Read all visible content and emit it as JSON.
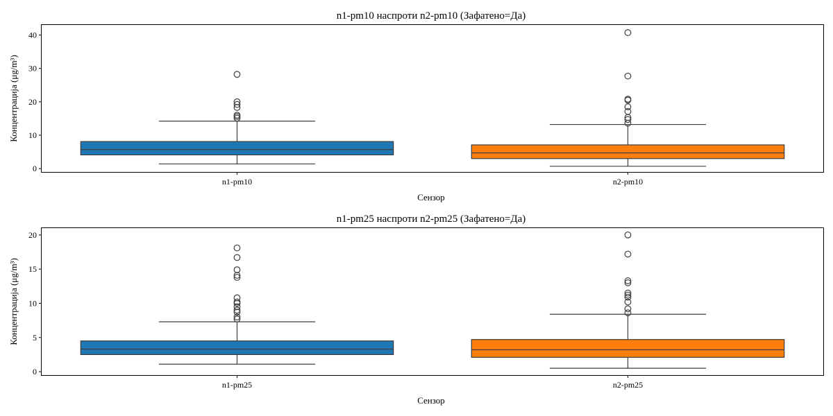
{
  "colors": {
    "n1": "#1f77b4",
    "n2": "#ff7f0e"
  },
  "chart_data": [
    {
      "type": "box",
      "title": "n1-pm10 наспроти n2-pm10 (Зафатено=Да)",
      "xlabel": "Сензор",
      "ylabel": "Концентрација (μg/m³)",
      "ylim": [
        -1,
        43
      ],
      "yticks": [
        0,
        10,
        20,
        30,
        40
      ],
      "categories": [
        "n1-pm10",
        "n2-pm10"
      ],
      "boxes": [
        {
          "q1": 4.1,
          "median": 5.7,
          "q3": 8.1,
          "whisker_low": 1.4,
          "whisker_high": 14.2,
          "outliers": [
            15.1,
            15.6,
            16.0,
            18.3,
            19.2,
            20.0,
            28.2
          ]
        },
        {
          "q1": 3.0,
          "median": 4.7,
          "q3": 7.1,
          "whisker_low": 0.7,
          "whisker_high": 13.2,
          "outliers": [
            13.6,
            14.7,
            15.3,
            17.1,
            18.5,
            20.5,
            20.8,
            27.7,
            40.7
          ]
        }
      ]
    },
    {
      "type": "box",
      "title": "n1-pm25 наспроти n2-pm25 (Зафатено=Да)",
      "xlabel": "Сензор",
      "ylabel": "Концентрација (μg/m³)",
      "ylim": [
        -0.5,
        21
      ],
      "yticks": [
        0,
        5,
        10,
        15,
        20
      ],
      "categories": [
        "n1-pm25",
        "n2-pm25"
      ],
      "boxes": [
        {
          "q1": 2.5,
          "median": 3.3,
          "q3": 4.5,
          "whisker_low": 1.1,
          "whisker_high": 7.3,
          "outliers": [
            7.7,
            8.0,
            8.7,
            9.0,
            9.5,
            10.0,
            10.2,
            10.8,
            13.8,
            14.1,
            14.9,
            16.7,
            18.1
          ]
        },
        {
          "q1": 2.1,
          "median": 3.2,
          "q3": 4.7,
          "whisker_low": 0.5,
          "whisker_high": 8.4,
          "outliers": [
            8.6,
            9.2,
            10.2,
            10.9,
            11.2,
            11.5,
            13.0,
            13.3,
            17.2,
            20.0
          ]
        }
      ]
    }
  ]
}
